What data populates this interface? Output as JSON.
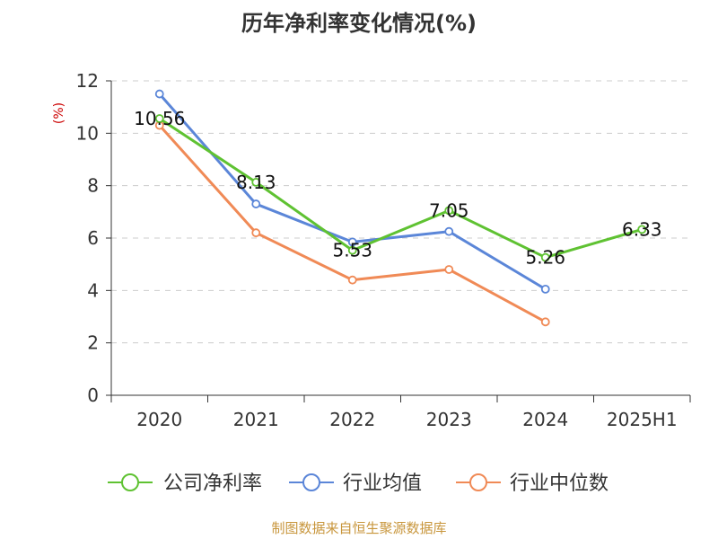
{
  "title": "历年净利率变化情况(%)",
  "source": "制图数据来自恒生聚源数据库",
  "colors": {
    "axis": "#333333",
    "grid": "#cccccc",
    "ylabel": "#cc0000",
    "source": "#c8963c"
  },
  "chart_data": {
    "type": "line",
    "title": "历年净利率变化情况(%)",
    "ylabel": "(%)",
    "xlabel": "",
    "categories": [
      "2020",
      "2021",
      "2022",
      "2023",
      "2024",
      "2025H1"
    ],
    "ylim": [
      0,
      12
    ],
    "yticks": [
      "0",
      "2",
      "4",
      "6",
      "8",
      "10",
      "12"
    ],
    "grid": true,
    "legend_position": "bottom",
    "series": [
      {
        "name": "公司净利率",
        "color": "#5fc232",
        "values": [
          10.56,
          8.13,
          5.53,
          7.05,
          5.26,
          6.33
        ],
        "labels": [
          "10.56",
          "8.13",
          "5.53",
          "7.05",
          "5.26",
          "6.33"
        ]
      },
      {
        "name": "行业均值",
        "color": "#5b86d8",
        "values": [
          11.5,
          7.3,
          5.85,
          6.25,
          4.05,
          null
        ]
      },
      {
        "name": "行业中位数",
        "color": "#f08a56",
        "values": [
          10.3,
          6.2,
          4.4,
          4.8,
          2.8,
          null
        ]
      }
    ]
  }
}
